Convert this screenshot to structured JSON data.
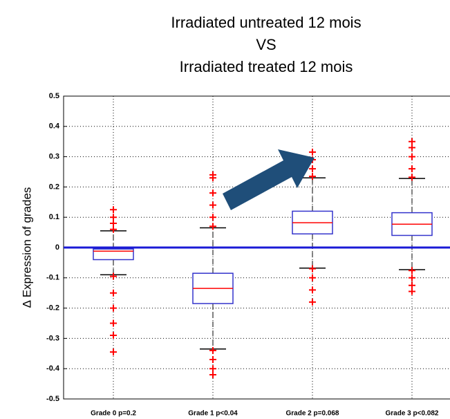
{
  "chart_data": {
    "type": "box",
    "title": [
      "Irradiated untreated 12 mois",
      "VS",
      "Irradiated treated 12 mois"
    ],
    "y_label": "Δ Expression of grades",
    "categories": [
      "Grade 0 p=0.2",
      "Grade 1 p<0.04",
      "Grade 2 p=0.068",
      "Grade 3 p<0.082"
    ],
    "boxes": [
      {
        "whisker_low": -0.09,
        "q1": -0.04,
        "median": -0.012,
        "q3": -0.005,
        "whisker_high": 0.055,
        "outliers": [
          0.06,
          0.08,
          0.1,
          0.125,
          -0.095,
          -0.15,
          -0.2,
          -0.25,
          -0.29,
          -0.345
        ]
      },
      {
        "whisker_low": -0.335,
        "q1": -0.185,
        "median": -0.135,
        "q3": -0.085,
        "whisker_high": 0.065,
        "outliers": [
          0.07,
          0.1,
          0.14,
          0.18,
          0.23,
          0.24,
          -0.34,
          -0.37,
          -0.4,
          -0.42
        ]
      },
      {
        "whisker_low": -0.068,
        "q1": 0.045,
        "median": 0.082,
        "q3": 0.12,
        "whisker_high": 0.23,
        "outliers": [
          0.235,
          0.26,
          0.29,
          0.315,
          -0.07,
          -0.1,
          -0.14,
          -0.18
        ]
      },
      {
        "whisker_low": -0.073,
        "q1": 0.04,
        "median": 0.077,
        "q3": 0.115,
        "whisker_high": 0.228,
        "outliers": [
          0.232,
          0.26,
          0.3,
          0.33,
          0.35,
          -0.076,
          -0.1,
          -0.125,
          -0.145
        ]
      }
    ],
    "box_color": "#3333cc",
    "median_color": "#ff0000",
    "outlier_color": "#ff0000",
    "hline": 0,
    "hline_color": "#1a1ad6",
    "ylim": [
      -0.5,
      0.5
    ],
    "yticks": [
      -0.5,
      -0.4,
      -0.3,
      -0.2,
      -0.1,
      0,
      0.1,
      0.2,
      0.3,
      0.4,
      0.5
    ],
    "grid": true
  }
}
